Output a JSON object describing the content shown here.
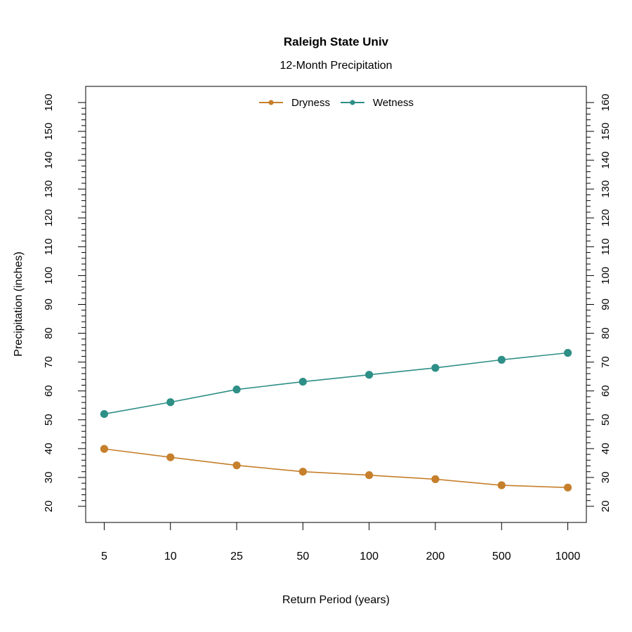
{
  "page": {
    "background_color": "#ffffff"
  },
  "chart_data": {
    "type": "line",
    "title": "Raleigh State Univ",
    "subtitle": "12-Month Precipitation",
    "xlabel": "Return Period (years)",
    "ylabel": "Precipitation (inches)",
    "categories": [
      "5",
      "10",
      "25",
      "50",
      "100",
      "200",
      "500",
      "1000"
    ],
    "series": [
      {
        "name": "Dryness",
        "color": "#C67F2B",
        "values": [
          39.9,
          37.0,
          34.2,
          32.0,
          30.8,
          29.4,
          27.3,
          26.5
        ]
      },
      {
        "name": "Wetness",
        "color": "#2E8F87",
        "values": [
          52.0,
          56.1,
          60.5,
          63.2,
          65.6,
          68.0,
          70.8,
          73.2
        ]
      }
    ],
    "ylim": [
      20,
      160
    ],
    "yticks": [
      20,
      30,
      40,
      50,
      60,
      70,
      80,
      90,
      100,
      110,
      120,
      130,
      140,
      150,
      160
    ],
    "yminor_step": 2,
    "axis_pad_frac": 0.04,
    "grid": "off",
    "legend_position": "top-center-inside",
    "axes": {
      "left_tick_labels": true,
      "right_tick_labels": true,
      "x_scale_note": "categories evenly spaced"
    },
    "colors": {
      "axis": "#000000",
      "text": "#000000"
    }
  }
}
